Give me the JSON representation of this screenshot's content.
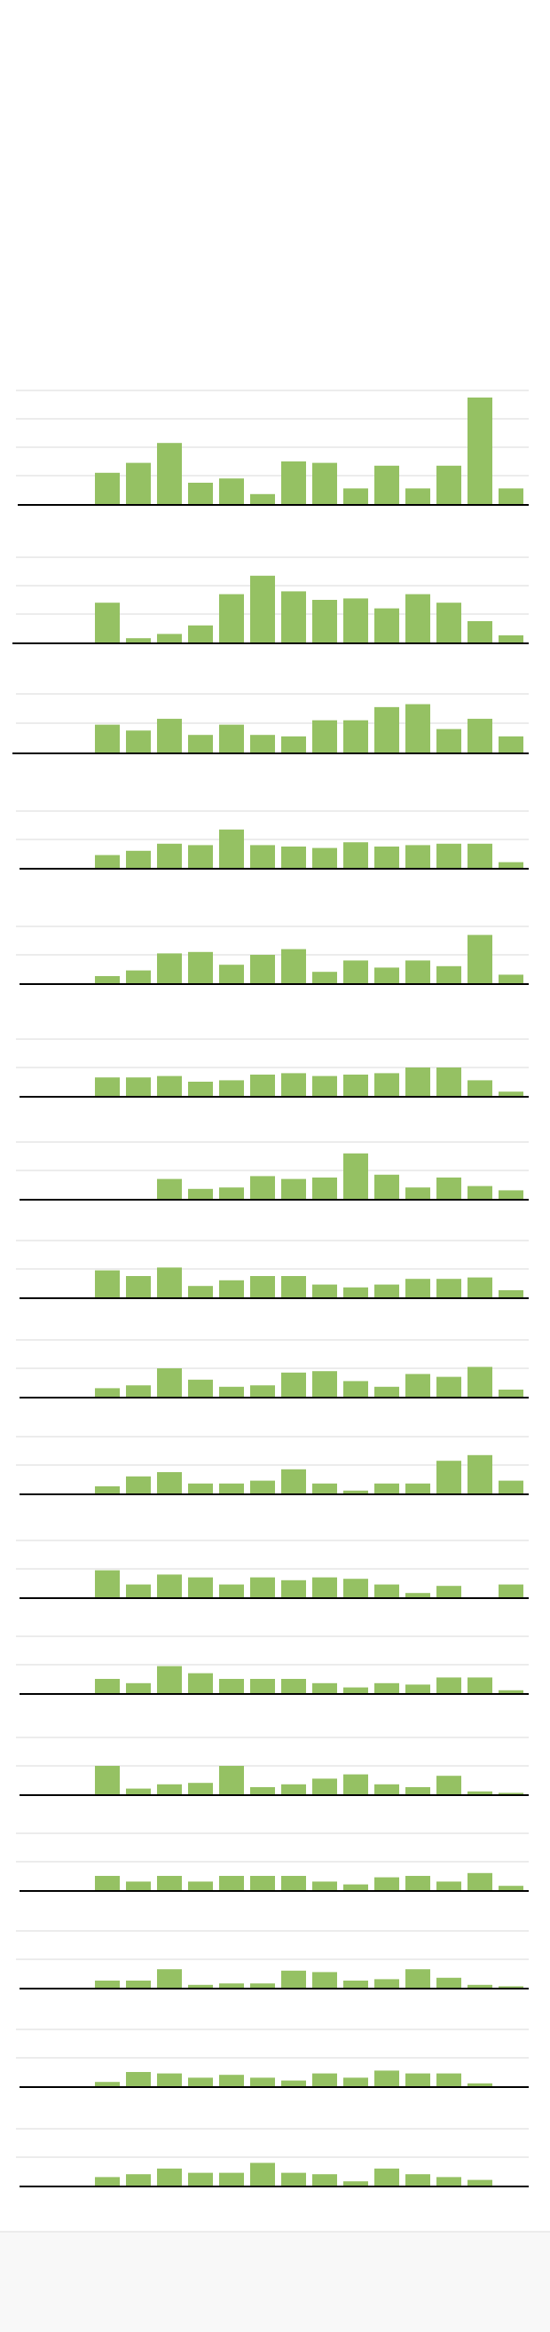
{
  "colors": {
    "bar": "#95c163",
    "grid": "#e6e6e6",
    "baseline": "#000000",
    "footer": "#f8f8f8"
  },
  "chart_data": [
    {
      "type": "bar",
      "grid": true,
      "ylim": [
        0,
        4
      ],
      "values": [
        1.1,
        1.45,
        2.15,
        0.75,
        0.9,
        0.35,
        1.5,
        1.45,
        0.55,
        1.35,
        0.55,
        1.35,
        3.75,
        0.55
      ]
    },
    {
      "type": "bar",
      "grid": true,
      "ylim": [
        0,
        3
      ],
      "values": [
        1.4,
        0.15,
        0.3,
        0.6,
        1.7,
        2.35,
        1.8,
        1.5,
        1.55,
        1.2,
        1.7,
        1.4,
        0.75,
        0.25
      ]
    },
    {
      "type": "bar",
      "grid": true,
      "ylim": [
        0,
        2
      ],
      "values": [
        0.95,
        0.75,
        1.15,
        0.6,
        0.95,
        0.6,
        0.55,
        1.1,
        1.1,
        1.55,
        1.65,
        0.8,
        1.15,
        0.55
      ]
    },
    {
      "type": "bar",
      "grid": true,
      "ylim": [
        0,
        2
      ],
      "values": [
        0.45,
        0.6,
        0.85,
        0.8,
        1.35,
        0.8,
        0.75,
        0.7,
        0.9,
        0.75,
        0.8,
        0.85,
        0.85,
        0.2
      ]
    },
    {
      "type": "bar",
      "grid": true,
      "ylim": [
        0,
        2
      ],
      "values": [
        0.25,
        0.45,
        1.05,
        1.1,
        0.65,
        1.0,
        1.2,
        0.4,
        0.8,
        0.55,
        0.8,
        0.6,
        1.7,
        0.3
      ]
    },
    {
      "type": "bar",
      "grid": true,
      "ylim": [
        0,
        2
      ],
      "values": [
        0.65,
        0.65,
        0.7,
        0.5,
        0.55,
        0.75,
        0.8,
        0.7,
        0.75,
        0.8,
        1.0,
        1.0,
        0.55,
        0.15
      ]
    },
    {
      "type": "bar",
      "grid": true,
      "ylim": [
        0,
        2
      ],
      "values": [
        0,
        0,
        0.7,
        0.35,
        0.4,
        0.8,
        0.7,
        0.75,
        1.6,
        0.85,
        0.4,
        0.75,
        0.45,
        0.3
      ]
    },
    {
      "type": "bar",
      "grid": true,
      "ylim": [
        0,
        2
      ],
      "values": [
        0.95,
        0.75,
        1.05,
        0.4,
        0.6,
        0.75,
        0.75,
        0.45,
        0.35,
        0.45,
        0.65,
        0.65,
        0.7,
        0.25
      ]
    },
    {
      "type": "bar",
      "grid": true,
      "ylim": [
        0,
        2
      ],
      "values": [
        0.3,
        0.4,
        1.0,
        0.6,
        0.35,
        0.4,
        0.85,
        0.9,
        0.55,
        0.35,
        0.8,
        0.7,
        1.05,
        0.25
      ]
    },
    {
      "type": "bar",
      "grid": true,
      "ylim": [
        0,
        2
      ],
      "values": [
        0.25,
        0.6,
        0.75,
        0.35,
        0.35,
        0.45,
        0.85,
        0.35,
        0.1,
        0.35,
        0.35,
        1.15,
        1.35,
        0.45
      ]
    },
    {
      "type": "bar",
      "grid": true,
      "ylim": [
        0,
        2
      ],
      "values": [
        0.95,
        0.45,
        0.8,
        0.7,
        0.45,
        0.7,
        0.6,
        0.7,
        0.65,
        0.45,
        0.15,
        0.4,
        0,
        0.45
      ]
    },
    {
      "type": "bar",
      "grid": true,
      "ylim": [
        0,
        2
      ],
      "values": [
        0.5,
        0.35,
        0.95,
        0.7,
        0.5,
        0.5,
        0.5,
        0.35,
        0.2,
        0.35,
        0.3,
        0.55,
        0.55,
        0.1
      ]
    },
    {
      "type": "bar",
      "grid": true,
      "ylim": [
        0,
        2
      ],
      "values": [
        1.0,
        0.2,
        0.35,
        0.4,
        1.0,
        0.25,
        0.35,
        0.55,
        0.7,
        0.35,
        0.25,
        0.65,
        0.1,
        0.05
      ]
    },
    {
      "type": "bar",
      "grid": true,
      "ylim": [
        0,
        2
      ],
      "values": [
        0.5,
        0.3,
        0.5,
        0.3,
        0.5,
        0.5,
        0.5,
        0.3,
        0.2,
        0.45,
        0.5,
        0.3,
        0.6,
        0.15
      ]
    },
    {
      "type": "bar",
      "grid": true,
      "ylim": [
        0,
        2
      ],
      "values": [
        0.25,
        0.25,
        0.65,
        0.1,
        0.15,
        0.15,
        0.6,
        0.55,
        0.25,
        0.3,
        0.65,
        0.35,
        0.1,
        0.05
      ]
    },
    {
      "type": "bar",
      "grid": true,
      "ylim": [
        0,
        2
      ],
      "values": [
        0.15,
        0.5,
        0.45,
        0.3,
        0.4,
        0.3,
        0.2,
        0.45,
        0.3,
        0.55,
        0.45,
        0.45,
        0.1
      ]
    },
    {
      "type": "bar",
      "grid": true,
      "ylim": [
        0,
        2
      ],
      "values": [
        0.3,
        0.4,
        0.6,
        0.45,
        0.45,
        0.8,
        0.45,
        0.4,
        0.15,
        0.6,
        0.4,
        0.3,
        0.2
      ]
    }
  ]
}
